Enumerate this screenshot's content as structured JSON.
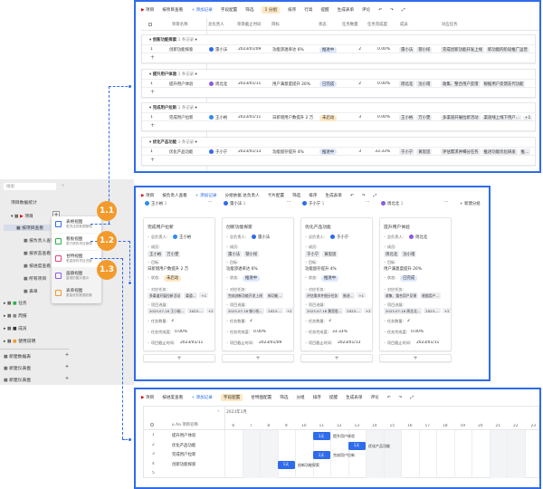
{
  "colors": {
    "accent": "#2f6bea",
    "callout": "#f39a2c",
    "status_in_progress": "#dfe9fd",
    "status_done": "#dfe9fd",
    "status_not_started": "#fde8c4"
  },
  "sidebar": {
    "search_placeholder": "搜索",
    "stats": "项目数据统计",
    "project": "项目",
    "views": [
      "按项目查看",
      "按负责人查看",
      "按状态查看",
      "按进度查看",
      "所有项目",
      "表单"
    ],
    "tables": [
      "任务",
      "周报",
      "成员",
      "使用说明"
    ],
    "bottom": [
      "新建数据表",
      "新建仪表盘",
      "新建仪表盘"
    ]
  },
  "popup": [
    {
      "title": "表格视图",
      "desc": "更灵活的数据管理",
      "icon": "table-view-icon",
      "color": "#2f6bea"
    },
    {
      "title": "看板视图",
      "desc": "更方便的项目管理",
      "icon": "kanban-view-icon",
      "color": "#2bb24c"
    },
    {
      "title": "甘特视图",
      "desc": "更直观的项目进度",
      "icon": "gantt-view-icon",
      "color": "#e0457b"
    },
    {
      "title": "画册视图",
      "desc": "直观的图片展示",
      "icon": "gallery-view-icon",
      "color": "#8a5be0"
    },
    {
      "title": "表单视图",
      "desc": "更高效的数据收集",
      "icon": "form-view-icon",
      "color": "#f39a2c"
    }
  ],
  "callouts": [
    "1.1",
    "1.2",
    "1.3"
  ],
  "table_view": {
    "toolbar": [
      "项目",
      "按项目查看",
      "+ 添加记录",
      "字段配置",
      "筛选",
      "1 分组",
      "排序",
      "行高",
      "提醒",
      "生成表单",
      "评论"
    ],
    "columns": [
      "项目名称",
      "总负责人",
      "项目截止时间",
      "目标",
      "状态",
      "任务数量",
      "任务完成度",
      "成员",
      "对应任务"
    ],
    "groups": [
      {
        "name": "创新功能探索",
        "count": "1 条记录",
        "row": {
          "no": "1",
          "name": "创新功能探索",
          "owner": "雷小法",
          "owner_color": "#2f6bea",
          "due": "2023/01/09",
          "goal": "功能渗透率达 6%",
          "status": "推进中",
          "tasks": "2",
          "progress": "0.00%",
          "members": [
            "雷小法",
            "郁小彤"
          ],
          "linked": [
            "完成创新功能开发上线",
            "新功能的阶段推广运营"
          ]
        }
      },
      {
        "name": "提升用户体验",
        "count": "1 条记录",
        "row": {
          "no": "1",
          "name": "提升用户体验",
          "owner": "周北北",
          "owner_color": "#8a5be0",
          "due": "2023/01/11",
          "goal": "用户满意度提升 20%",
          "status": "已完成",
          "tasks": "2",
          "progress": "0.00%",
          "members": [
            "周北北",
            "沈小雨"
          ],
          "linked": [
            "收集、整合用户反馈",
            "根据用户反馈迭代功能"
          ]
        }
      },
      {
        "name": "完成用户拉新",
        "count": "1 条记录",
        "row": {
          "no": "1",
          "name": "完成用户拉新",
          "owner": "王小裕",
          "owner_color": "#2f8cea",
          "due": "2023/01/11",
          "goal": "日新增用户数提升 2 万",
          "status": "未启动",
          "tasks": "3",
          "progress": "0.00%",
          "members": [
            "王小裕",
            "万小雯"
          ],
          "linked": [
            "多渠道开展拉新活动",
            "渠道线上线下用户...",
            "+1"
          ]
        }
      },
      {
        "name": "优化产品功能",
        "count": "1 条记录",
        "row": {
          "no": "1",
          "name": "优化产品功能",
          "owner": "于小宁",
          "owner_color": "#2f6bea",
          "due": "2023/01/13",
          "goal": "功能留存提升 4%",
          "status": "推进中",
          "tasks": "3",
          "progress": "33.33%",
          "members": [
            "于小宁",
            "黄思思"
          ],
          "linked": [
            "评估需求并细分任务",
            "推进功能优化研发",
            "推..."
          ]
        }
      }
    ]
  },
  "kanban_view": {
    "toolbar": [
      "项目",
      "按负责人查看",
      "+ 添加记录",
      "分组依据 总负责人",
      "卡片配置",
      "筛选",
      "排序",
      "生成表单"
    ],
    "new_group": "新建分组",
    "field_labels": {
      "owner": "总负责人:",
      "members": "成员:",
      "goal": "目标:",
      "status": "状态:",
      "linked": "对应任务:",
      "updates": "项目进展:",
      "tasks": "任务数量:",
      "progress": "任务完成度:",
      "due": "项目截止时间:"
    },
    "columns": [
      {
        "owner": "王小裕",
        "count": "1",
        "color": "#2f8cea",
        "title": "完成用户拉新",
        "members": [
          "王小裕",
          "万小雯"
        ],
        "goal": "日新增用户数提升 2 万",
        "status": "未启动",
        "linked": [
          "多渠道开展拉新活动",
          "渠道...",
          "+1"
        ],
        "updates": [
          "2023-07-18 王小裕...",
          "2023-...",
          "+2"
        ],
        "tasks": "3",
        "progress": "0.00%",
        "due": "2023/01/11"
      },
      {
        "owner": "雷小法",
        "count": "1",
        "color": "#2f6bea",
        "title": "创新功能探索",
        "members": [
          "雷小法",
          "郁小彤"
        ],
        "goal": "功能渗透率达 6%",
        "status": "推进中",
        "linked": [
          "完成创新功能开发上线",
          "新功能..."
        ],
        "updates": [
          "2023-07-18 郁小彤...",
          "2023-...",
          "+2"
        ],
        "tasks": "2",
        "progress": "0.00%",
        "due": "2023/01/09"
      },
      {
        "owner": "于小宁",
        "count": "1",
        "color": "#2f6bea",
        "title": "优化产品功能",
        "members": [
          "于小宁",
          "黄思思"
        ],
        "goal": "功能留存提升 4%",
        "status": "推进中",
        "linked": [
          "评估需求并细分任务",
          "推进...",
          "+1"
        ],
        "updates": [
          "2023-07-18 黄思思...",
          "2023-...",
          "+2"
        ],
        "tasks": "3",
        "progress": "33.33%",
        "due": "2023/01/13"
      },
      {
        "owner": "周北北",
        "count": "1",
        "color": "#8a5be0",
        "title": "提升用户体验",
        "members": [
          "周北北",
          "沈小雨"
        ],
        "goal": "用户满意度提升 20%",
        "status": "已完成",
        "linked": [
          "收集、整合用户反馈",
          "根据用户..."
        ],
        "updates": [
          "2023-07-18 周北北...",
          "2023-...",
          "+2"
        ],
        "tasks": "2",
        "progress": "0.00%",
        "due": "2023/01/11"
      }
    ]
  },
  "gantt_view": {
    "toolbar": [
      "项目",
      "按进度查看",
      "+ 添加记录",
      "字段配置",
      "甘特图配置",
      "筛选",
      "分组",
      "排序",
      "提醒",
      "生成表单",
      "评论"
    ],
    "month": "2023年1月",
    "name_header": "项目名称",
    "days": [
      "6",
      "7",
      "8",
      "9",
      "10",
      "11",
      "12",
      "13",
      "14",
      "15",
      "16",
      "17",
      "18",
      "19",
      "20",
      "21",
      "22",
      "23",
      "24",
      "25"
    ],
    "weekend_days": [
      "7",
      "8",
      "14",
      "15",
      "21",
      "22"
    ],
    "rows": [
      {
        "no": "1",
        "name": "提升用户体验",
        "start_day": "11",
        "duration": "1天"
      },
      {
        "no": "2",
        "name": "优化产品功能",
        "start_day": "13",
        "duration": "1天"
      },
      {
        "no": "3",
        "name": "完成用户拉新",
        "start_day": "11",
        "duration": "1天"
      },
      {
        "no": "4",
        "name": "创新功能探索",
        "start_day": "9",
        "duration": "1天"
      },
      {
        "no": "5",
        "name": "",
        "start_day": "",
        "duration": ""
      }
    ]
  }
}
